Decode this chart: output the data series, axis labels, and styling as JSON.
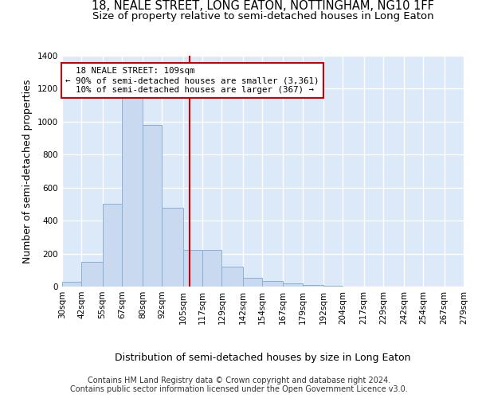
{
  "title": "18, NEALE STREET, LONG EATON, NOTTINGHAM, NG10 1FF",
  "subtitle": "Size of property relative to semi-detached houses in Long Eaton",
  "xlabel": "Distribution of semi-detached houses by size in Long Eaton",
  "ylabel": "Number of semi-detached properties",
  "bar_color": "#c9d9f0",
  "bar_edge_color": "#8ab0d8",
  "background_color": "#dce9f8",
  "grid_color": "#ffffff",
  "property_line_x": 109,
  "property_label": "18 NEALE STREET: 109sqm",
  "pct_smaller": "90% of semi-detached houses are smaller (3,361)",
  "pct_larger": "10% of semi-detached houses are larger (367)",
  "annotation_box_color": "#ffffff",
  "annotation_box_edge": "#cc0000",
  "vline_color": "#cc0000",
  "bin_edges": [
    30,
    42,
    55,
    67,
    80,
    92,
    105,
    117,
    129,
    142,
    154,
    167,
    179,
    192,
    204,
    217,
    229,
    242,
    254,
    267,
    279
  ],
  "bar_heights": [
    30,
    150,
    500,
    1150,
    980,
    480,
    220,
    220,
    120,
    55,
    35,
    20,
    10,
    5,
    2,
    1,
    0,
    0,
    0,
    0
  ],
  "xlim": [
    30,
    279
  ],
  "ylim": [
    0,
    1400
  ],
  "yticks": [
    0,
    200,
    400,
    600,
    800,
    1000,
    1200,
    1400
  ],
  "footer_line1": "Contains HM Land Registry data © Crown copyright and database right 2024.",
  "footer_line2": "Contains public sector information licensed under the Open Government Licence v3.0.",
  "title_fontsize": 10.5,
  "subtitle_fontsize": 9.5,
  "tick_fontsize": 7.5,
  "label_fontsize": 9,
  "footer_fontsize": 7.0
}
